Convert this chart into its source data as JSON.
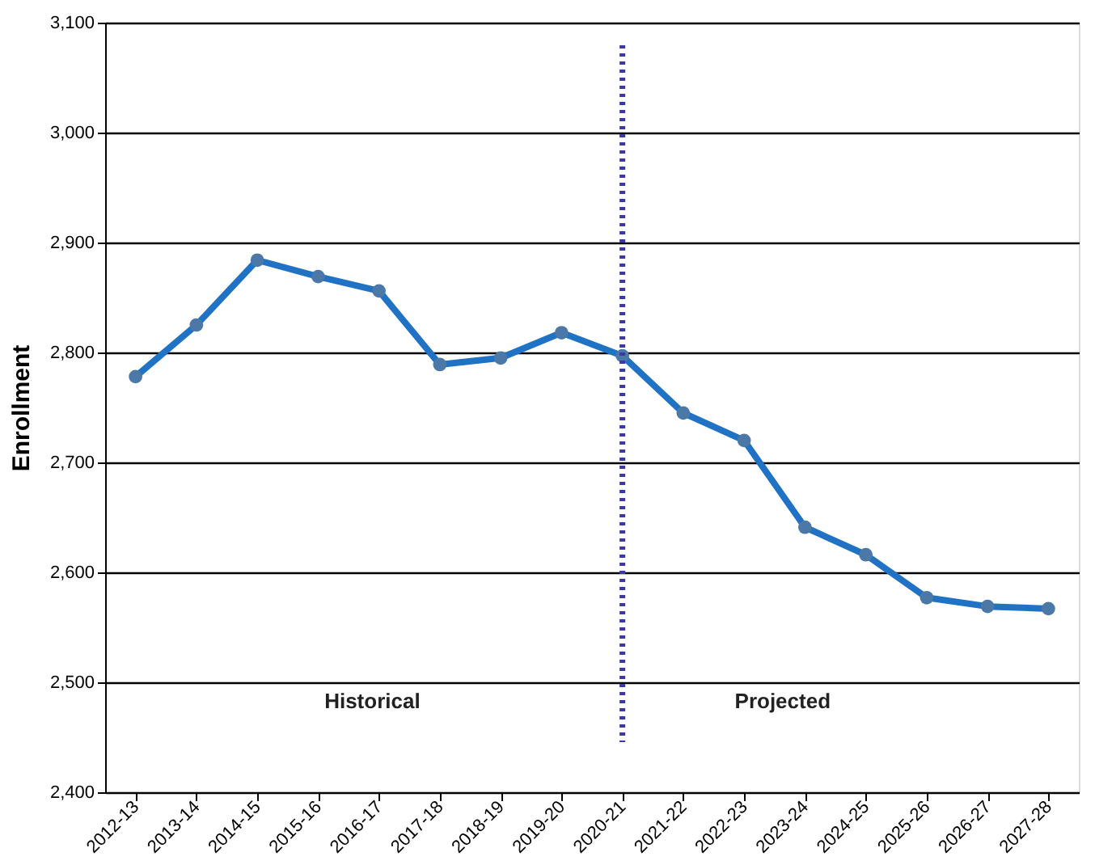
{
  "chart_data": {
    "type": "line",
    "ylabel": "Enrollment",
    "categories": [
      "2012-13",
      "2013-14",
      "2014-15",
      "2015-16",
      "2016-17",
      "2017-18",
      "2018-19",
      "2019-20",
      "2020-21",
      "2021-22",
      "2022-23",
      "2023-24",
      "2024-25",
      "2025-26",
      "2026-27",
      "2027-28"
    ],
    "series": [
      {
        "color": "#1f72c4",
        "values": [
          2778,
          2825,
          2884,
          2869,
          2856,
          2789,
          2795,
          2818,
          2797,
          2745,
          2720,
          2641,
          2616,
          2577,
          2569,
          2567
        ]
      }
    ],
    "ylim": [
      2400,
      3100
    ],
    "yticks": [
      {
        "value": 2400,
        "label": "2,400"
      },
      {
        "value": 2500,
        "label": "2,500"
      },
      {
        "value": 2600,
        "label": "2,600"
      },
      {
        "value": 2700,
        "label": "2,700"
      },
      {
        "value": 2800,
        "label": "2,800"
      },
      {
        "value": 2900,
        "label": "2,900"
      },
      {
        "value": 3000,
        "label": "3,000"
      },
      {
        "value": 3100,
        "label": "3,100"
      }
    ],
    "grid": "y",
    "marker": "circle",
    "line_style": "solid",
    "ref_lines": [
      {
        "axis": "x",
        "value": "2020-21",
        "color": "#3a3aa0",
        "line_style": "dotted"
      }
    ],
    "annotations": [
      "Historical",
      "Projected"
    ]
  }
}
